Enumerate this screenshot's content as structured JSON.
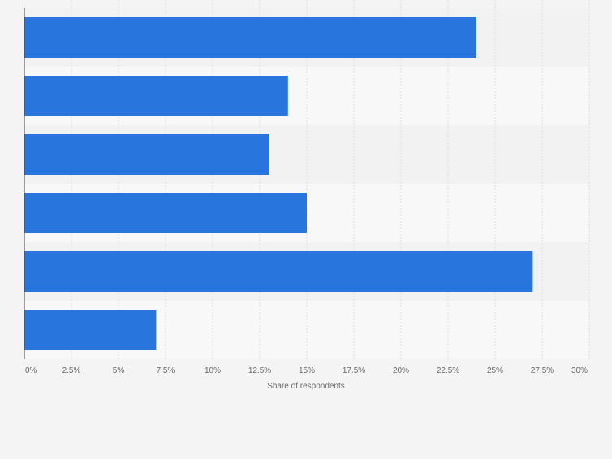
{
  "chart_data": {
    "type": "bar",
    "orientation": "horizontal",
    "title": "",
    "categories": [
      "",
      "",
      "",
      "",
      "",
      ""
    ],
    "values": [
      24,
      14,
      13,
      15,
      27,
      7
    ],
    "xlabel": "Share of respondents",
    "ylabel": "",
    "xlim": [
      0,
      30
    ],
    "x_ticks": [
      0,
      2.5,
      5,
      7.5,
      10,
      12.5,
      15,
      17.5,
      20,
      22.5,
      25,
      27.5,
      30
    ],
    "x_tick_labels": [
      "0%",
      "2.5%",
      "5%",
      "7.5%",
      "10%",
      "12.5%",
      "15%",
      "17.5%",
      "20%",
      "22.5%",
      "25%",
      "27.5%",
      "30%"
    ],
    "grid": true,
    "legend": "none",
    "colors": {
      "bar": "#2876dd",
      "band_dark": "#f2f2f2",
      "band_light": "#f8f8f8",
      "grid": "#dddddd",
      "axis": "#444444",
      "tick_text": "#666666",
      "background": "#f4f4f4"
    }
  }
}
